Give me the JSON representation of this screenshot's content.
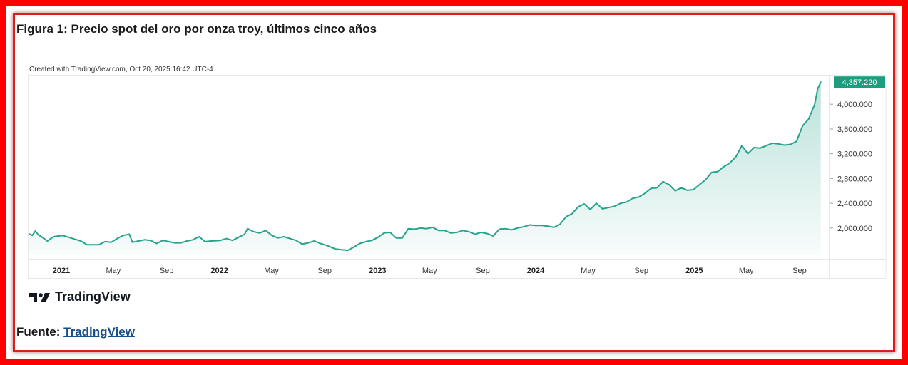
{
  "figure": {
    "title": "Figura 1: Precio spot del oro por onza troy, últimos cinco años",
    "created_with": "Created with TradingView.com, Oct 20, 2025 16:42 UTC-4",
    "logo_text": "TradingView",
    "source_label": "Fuente:",
    "source_link": "TradingView"
  },
  "colors": {
    "frame": "#ff0000",
    "line": "#26a38c",
    "price_tag": "#1e9d7e",
    "source_link": "#1b4f8a"
  },
  "chart_data": {
    "type": "area",
    "title": "",
    "xlabel": "",
    "ylabel": "",
    "x_ticks": [
      {
        "label": "2021",
        "date": "2021-01-01",
        "bold": true
      },
      {
        "label": "May",
        "date": "2021-05-01",
        "bold": false
      },
      {
        "label": "Sep",
        "date": "2021-09-01",
        "bold": false
      },
      {
        "label": "2022",
        "date": "2022-01-01",
        "bold": true
      },
      {
        "label": "May",
        "date": "2022-05-01",
        "bold": false
      },
      {
        "label": "Sep",
        "date": "2022-09-01",
        "bold": false
      },
      {
        "label": "2023",
        "date": "2023-01-01",
        "bold": true
      },
      {
        "label": "May",
        "date": "2023-05-01",
        "bold": false
      },
      {
        "label": "Sep",
        "date": "2023-09-01",
        "bold": false
      },
      {
        "label": "2024",
        "date": "2024-01-01",
        "bold": true
      },
      {
        "label": "May",
        "date": "2024-05-01",
        "bold": false
      },
      {
        "label": "Sep",
        "date": "2024-09-01",
        "bold": false
      },
      {
        "label": "2025",
        "date": "2025-01-01",
        "bold": true
      },
      {
        "label": "May",
        "date": "2025-05-01",
        "bold": false
      },
      {
        "label": "Sep",
        "date": "2025-09-01",
        "bold": false
      }
    ],
    "y_ticks": [
      {
        "label": "2,000.000",
        "value": 2000
      },
      {
        "label": "2,400.000",
        "value": 2400
      },
      {
        "label": "2,800.000",
        "value": 2800
      },
      {
        "label": "3,200.000",
        "value": 3200
      },
      {
        "label": "3,600.000",
        "value": 3600
      },
      {
        "label": "4,000.000",
        "value": 4000
      }
    ],
    "xlim": [
      "2020-10-19",
      "2025-11-06"
    ],
    "ylim": [
      1560,
      4440
    ],
    "last_price": {
      "label": "4,357.220",
      "value": 4357.22
    },
    "grid": false,
    "legend": "none",
    "series": [
      {
        "x": [
          "2020-10-19",
          "2020-10-26",
          "2020-11-02",
          "2020-11-09",
          "2020-11-16",
          "2020-11-30",
          "2020-12-14",
          "2021-01-04",
          "2021-01-18",
          "2021-02-01",
          "2021-02-15",
          "2021-03-01",
          "2021-03-15",
          "2021-03-29",
          "2021-04-12",
          "2021-04-26",
          "2021-05-10",
          "2021-05-24",
          "2021-06-07",
          "2021-06-14",
          "2021-06-28",
          "2021-07-12",
          "2021-07-26",
          "2021-08-09",
          "2021-08-23",
          "2021-09-06",
          "2021-09-20",
          "2021-10-04",
          "2021-10-18",
          "2021-11-01",
          "2021-11-15",
          "2021-11-29",
          "2021-12-13",
          "2022-01-03",
          "2022-01-17",
          "2022-01-31",
          "2022-02-14",
          "2022-02-28",
          "2022-03-07",
          "2022-03-21",
          "2022-04-04",
          "2022-04-18",
          "2022-05-02",
          "2022-05-16",
          "2022-05-30",
          "2022-06-13",
          "2022-06-27",
          "2022-07-11",
          "2022-07-25",
          "2022-08-08",
          "2022-08-22",
          "2022-09-05",
          "2022-09-26",
          "2022-10-10",
          "2022-10-24",
          "2022-11-07",
          "2022-11-21",
          "2022-12-05",
          "2022-12-19",
          "2023-01-02",
          "2023-01-16",
          "2023-01-30",
          "2023-02-13",
          "2023-02-27",
          "2023-03-13",
          "2023-03-27",
          "2023-04-10",
          "2023-04-24",
          "2023-05-08",
          "2023-05-22",
          "2023-06-05",
          "2023-06-19",
          "2023-07-03",
          "2023-07-17",
          "2023-07-31",
          "2023-08-14",
          "2023-08-28",
          "2023-09-11",
          "2023-09-25",
          "2023-10-09",
          "2023-10-23",
          "2023-11-06",
          "2023-11-20",
          "2023-12-04",
          "2023-12-18",
          "2024-01-01",
          "2024-01-15",
          "2024-01-29",
          "2024-02-12",
          "2024-02-26",
          "2024-03-11",
          "2024-03-25",
          "2024-04-08",
          "2024-04-22",
          "2024-05-06",
          "2024-05-20",
          "2024-06-03",
          "2024-06-17",
          "2024-07-01",
          "2024-07-15",
          "2024-07-29",
          "2024-08-12",
          "2024-08-26",
          "2024-09-09",
          "2024-09-23",
          "2024-10-07",
          "2024-10-21",
          "2024-11-04",
          "2024-11-18",
          "2024-12-02",
          "2024-12-16",
          "2024-12-30",
          "2025-01-13",
          "2025-01-27",
          "2025-02-10",
          "2025-02-24",
          "2025-03-10",
          "2025-03-24",
          "2025-04-07",
          "2025-04-21",
          "2025-05-05",
          "2025-05-19",
          "2025-06-02",
          "2025-06-16",
          "2025-06-30",
          "2025-07-14",
          "2025-07-28",
          "2025-08-11",
          "2025-08-25",
          "2025-09-08",
          "2025-09-22",
          "2025-10-06",
          "2025-10-13",
          "2025-10-20"
        ],
        "values": [
          1905,
          1880,
          1950,
          1890,
          1860,
          1790,
          1860,
          1880,
          1850,
          1820,
          1790,
          1730,
          1730,
          1730,
          1780,
          1770,
          1830,
          1880,
          1900,
          1770,
          1790,
          1810,
          1800,
          1750,
          1800,
          1780,
          1760,
          1760,
          1790,
          1810,
          1860,
          1780,
          1790,
          1800,
          1830,
          1800,
          1850,
          1900,
          1990,
          1940,
          1920,
          1960,
          1880,
          1840,
          1860,
          1830,
          1800,
          1740,
          1760,
          1790,
          1750,
          1720,
          1660,
          1650,
          1640,
          1690,
          1750,
          1780,
          1800,
          1850,
          1920,
          1930,
          1840,
          1840,
          1990,
          1980,
          2000,
          1990,
          2010,
          1960,
          1960,
          1920,
          1930,
          1960,
          1940,
          1900,
          1930,
          1910,
          1870,
          1980,
          1990,
          1970,
          2000,
          2020,
          2050,
          2040,
          2040,
          2030,
          2010,
          2060,
          2180,
          2230,
          2340,
          2390,
          2300,
          2400,
          2310,
          2330,
          2350,
          2400,
          2420,
          2480,
          2500,
          2560,
          2640,
          2650,
          2750,
          2700,
          2600,
          2650,
          2610,
          2620,
          2700,
          2780,
          2900,
          2910,
          2990,
          3050,
          3150,
          3330,
          3200,
          3300,
          3290,
          3330,
          3370,
          3360,
          3340,
          3350,
          3400,
          3650,
          3760,
          4000,
          4250,
          4357.22
        ]
      }
    ]
  }
}
